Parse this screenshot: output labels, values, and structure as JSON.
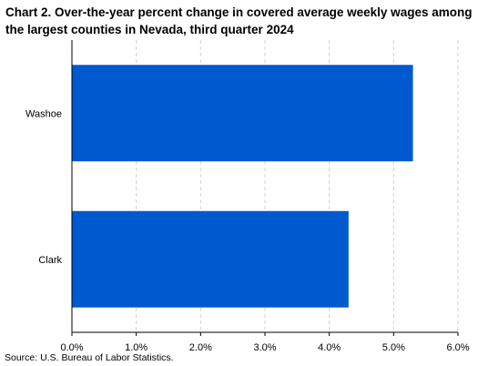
{
  "chart_data": {
    "type": "bar",
    "orientation": "horizontal",
    "title": "Chart 2.  Over-the-year percent change in covered average weekly wages among the largest counties in Nevada, third quarter 2024",
    "categories": [
      "Washoe",
      "Clark"
    ],
    "series": [
      {
        "values": [
          5.3,
          4.3
        ]
      }
    ],
    "xlim": [
      0,
      6
    ],
    "xticks": [
      "0.0%",
      "1.0%",
      "2.0%",
      "3.0%",
      "4.0%",
      "5.0%",
      "6.0%"
    ],
    "xtick_values": [
      0,
      1,
      2,
      3,
      4,
      5,
      6
    ],
    "grid": "vertical dashed",
    "bar_color": "#0059cf",
    "source": "Source: U.S. Bureau of Labor Statistics."
  }
}
